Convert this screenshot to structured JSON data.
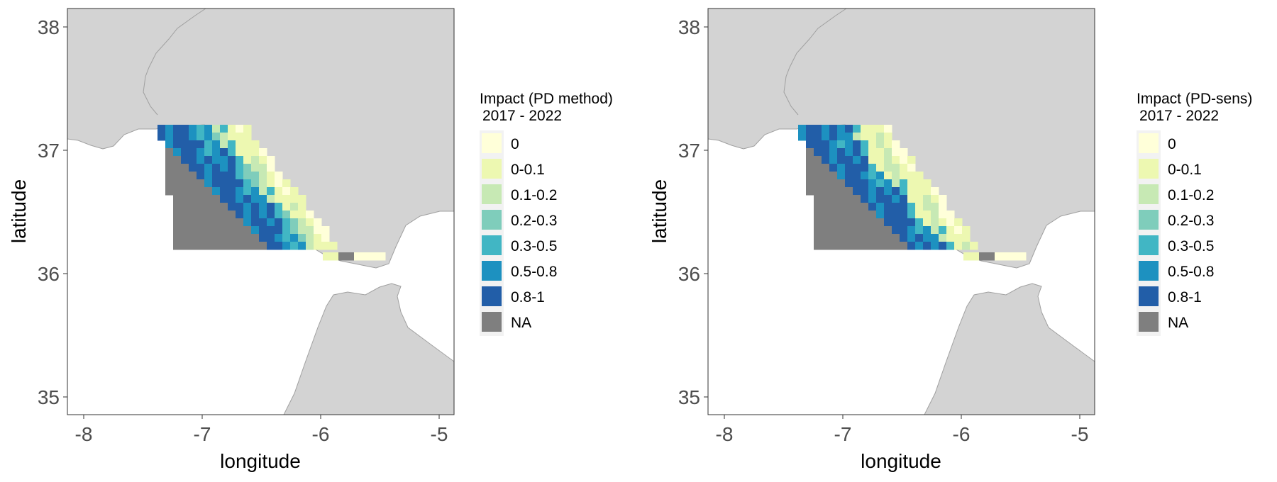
{
  "maps": [
    {
      "legend_title": [
        "Impact (PD method)",
        "2017 - 2022"
      ],
      "xlabel": "longitude",
      "ylabel": "latitude",
      "x_ticks": [
        "-8",
        "-7",
        "-6",
        "-5"
      ],
      "y_ticks": [
        "35",
        "36",
        "37",
        "38"
      ]
    },
    {
      "legend_title": [
        "Impact (PD-sens)",
        "2017 - 2022"
      ],
      "xlabel": "longitude",
      "ylabel": "latitude",
      "x_ticks": [
        "-8",
        "-7",
        "-6",
        "-5"
      ],
      "y_ticks": [
        "35",
        "36",
        "37",
        "38"
      ]
    }
  ],
  "legend_classes": [
    {
      "label": "0",
      "color": "#ffffd9"
    },
    {
      "label": "0-0.1",
      "color": "#edf8b1"
    },
    {
      "label": "0.1-0.2",
      "color": "#c7e9b4"
    },
    {
      "label": "0.2-0.3",
      "color": "#7fcdbb"
    },
    {
      "label": "0.3-0.5",
      "color": "#41b6c4"
    },
    {
      "label": "0.5-0.8",
      "color": "#1d91c0"
    },
    {
      "label": "0.8-1",
      "color": "#225ea8"
    },
    {
      "label": "NA",
      "color": "#7f7f7f"
    }
  ],
  "colors": {
    "land": "#d3d3d3",
    "land_border": "#a0a0a0",
    "panel_border": "#333333",
    "legend_key_bg": "#f2f2f2"
  }
}
